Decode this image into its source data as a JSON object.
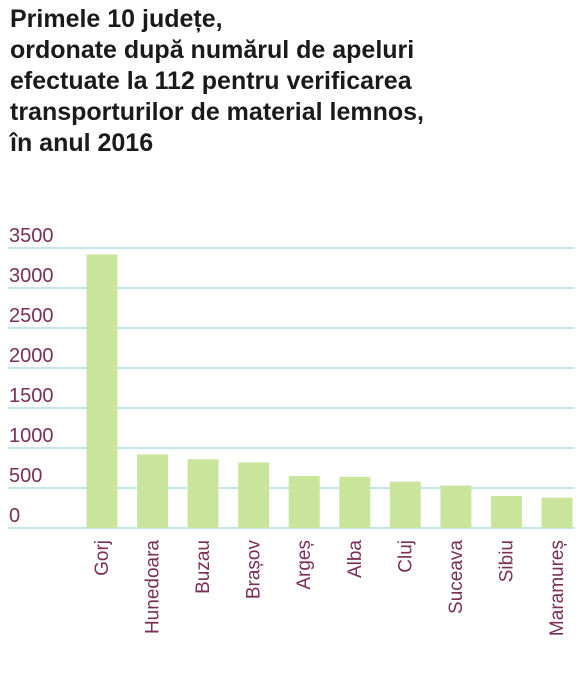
{
  "title_lines": [
    "Primele 10 județe,",
    "ordonate după numărul de apeluri",
    "efectuate la 112 pentru verificarea",
    "transporturilor de material lemnos,",
    "în anul 2016"
  ],
  "colors": {
    "bar": "#c9e59c",
    "grid": "#9ed6de",
    "tick_text": "#7b2e57",
    "title": "#1a1a1a"
  },
  "chart_data": {
    "type": "bar",
    "title": "Primele 10 județe, ordonate după numărul de apeluri efectuate la 112 pentru verificarea transporturilor de material lemnos, în anul 2016",
    "xlabel": "",
    "ylabel": "",
    "ylim": [
      0,
      3500
    ],
    "yticks": [
      0,
      500,
      1000,
      1500,
      2000,
      2500,
      3000,
      3500
    ],
    "ytick_labels": [
      "0",
      "500",
      "1000",
      "1500",
      "2000",
      "2500",
      "3000",
      "3500"
    ],
    "grid": true,
    "categories": [
      "Gorj",
      "Hunedoara",
      "Buzau",
      "Brașov",
      "Argeș",
      "Alba",
      "Cluj",
      "Suceava",
      "Sibiu",
      "Maramureș"
    ],
    "values": [
      3420,
      920,
      860,
      820,
      650,
      640,
      580,
      530,
      400,
      380
    ]
  }
}
